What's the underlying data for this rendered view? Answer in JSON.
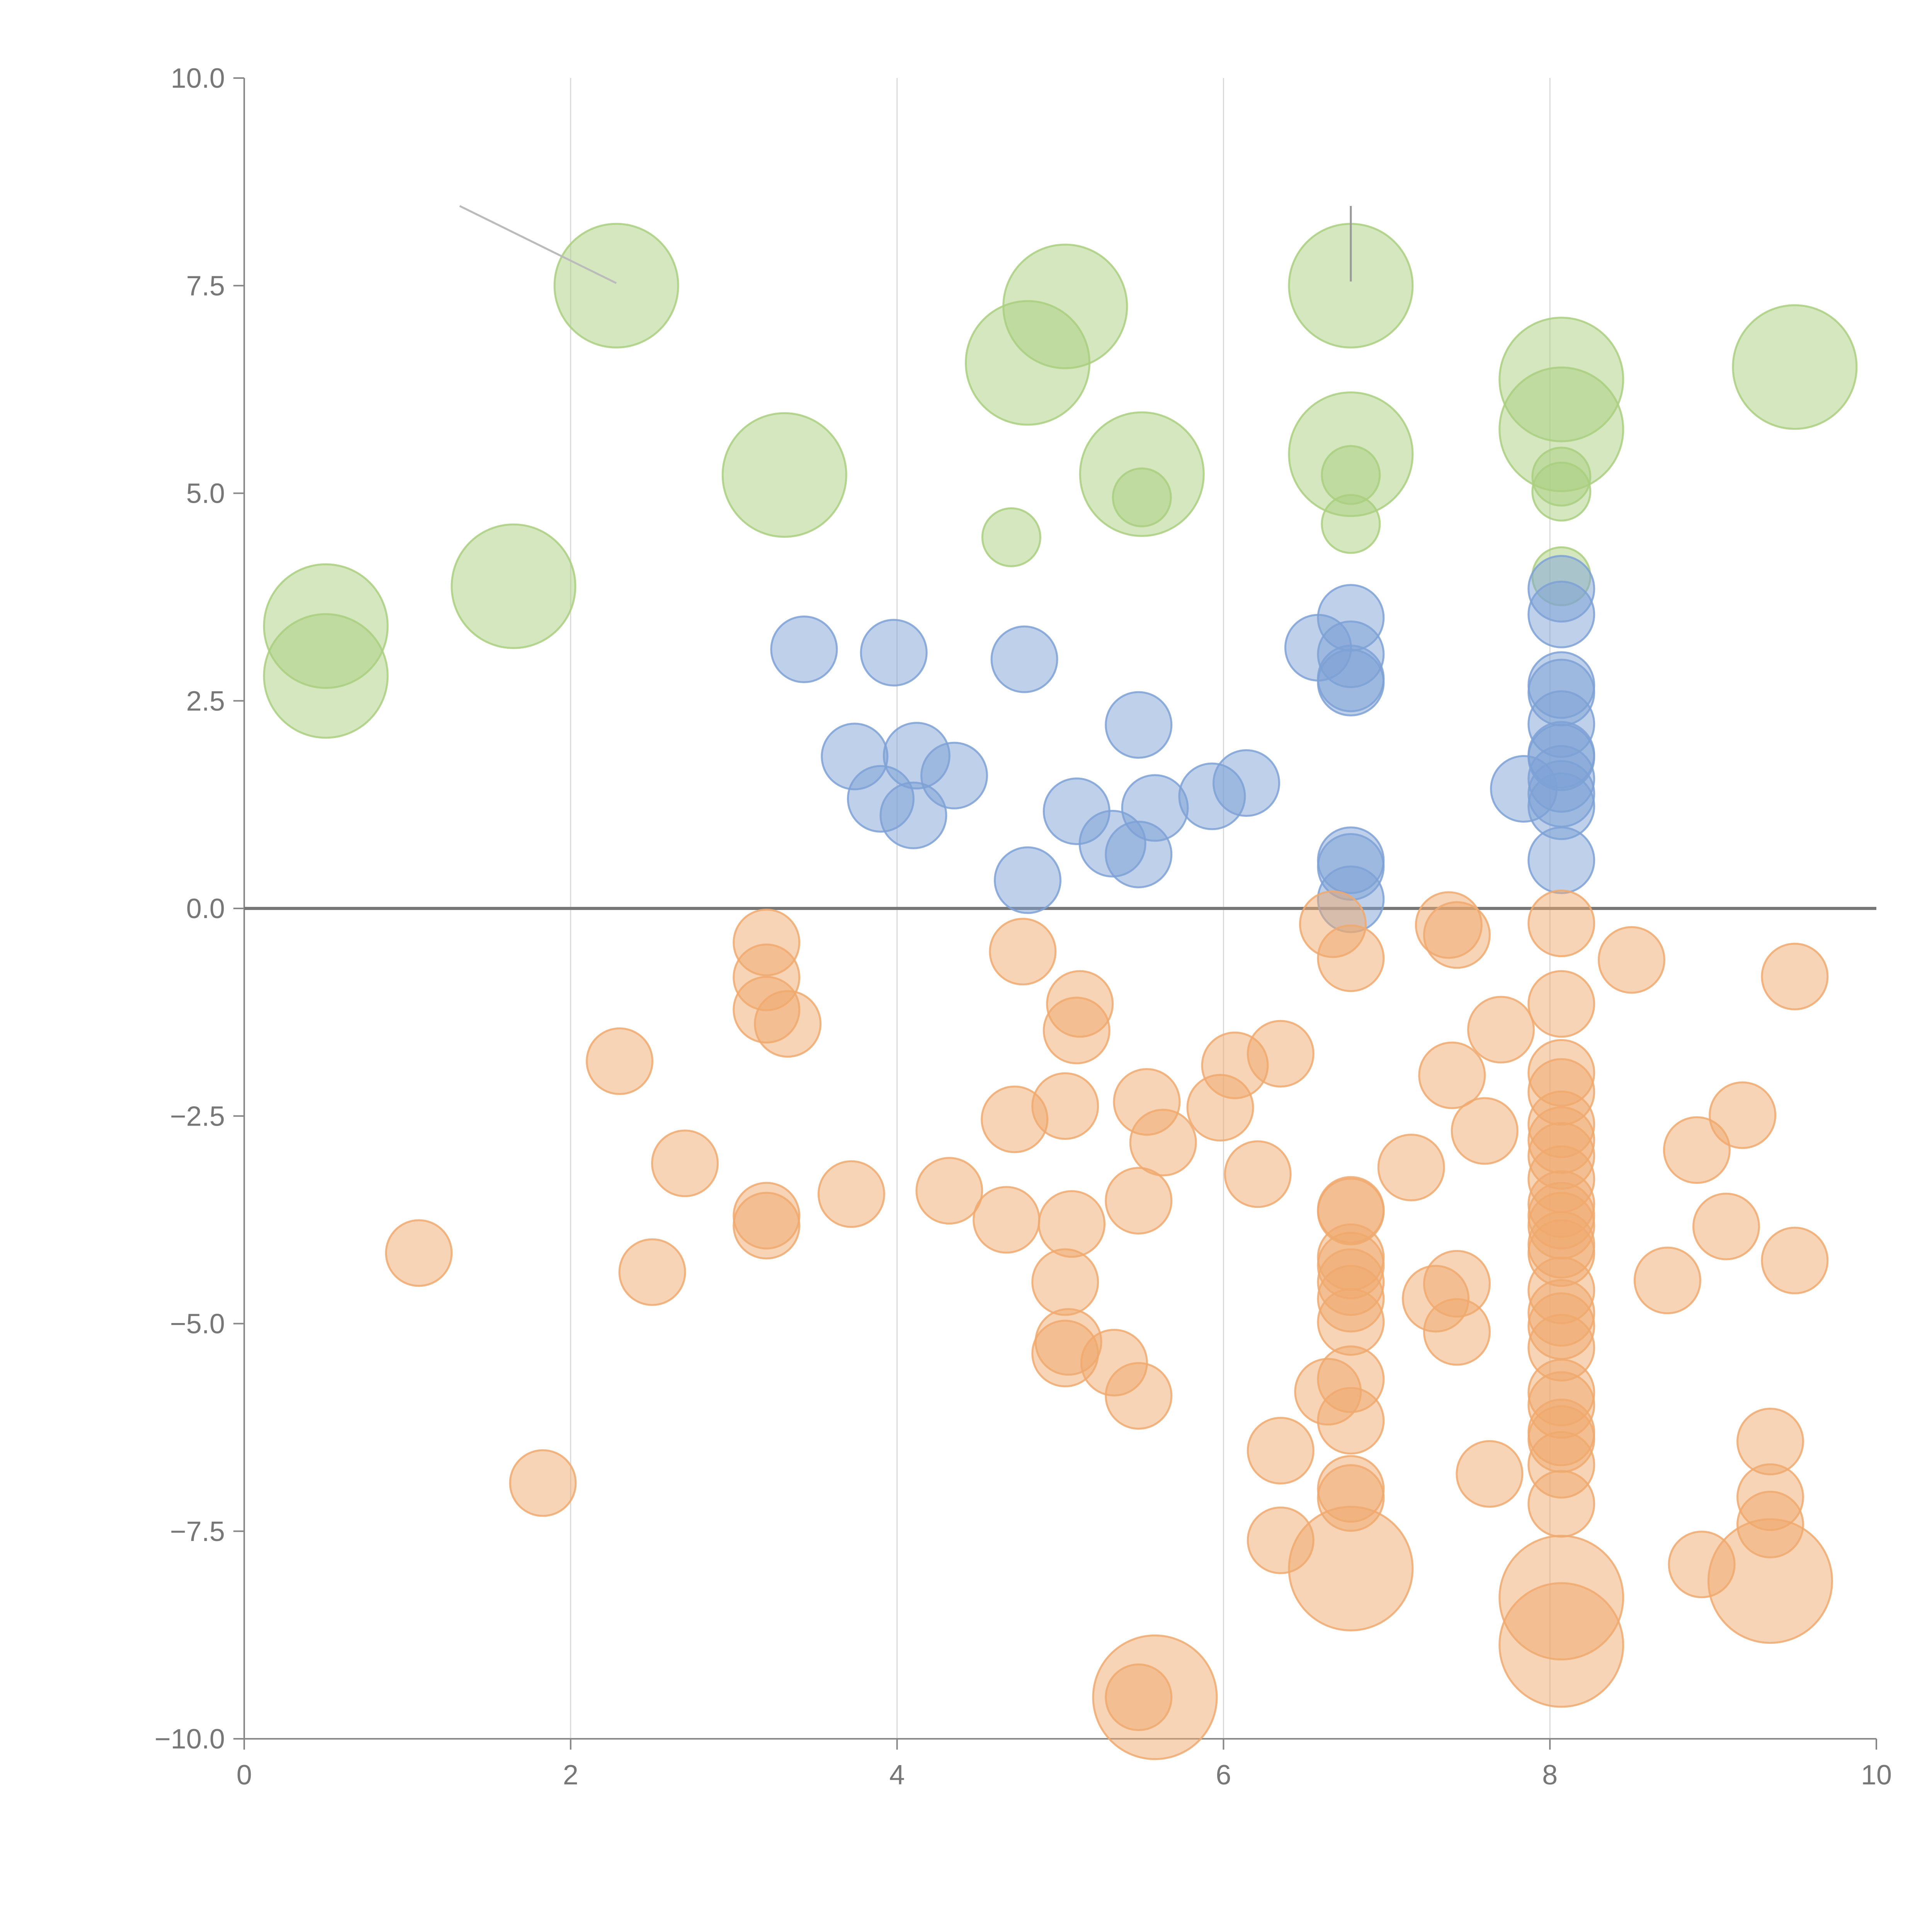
{
  "chart_data": {
    "type": "scatter",
    "title": "",
    "xlabel": "",
    "ylabel": "",
    "xlim": [
      0,
      10
    ],
    "ylim": [
      -10,
      10
    ],
    "x_ticks": [
      0,
      2,
      4,
      6,
      8,
      10
    ],
    "x_tick_labels": [
      "0",
      "2",
      "4",
      "6",
      "8",
      "10"
    ],
    "y_ticks": [
      -10,
      -7.5,
      -5,
      -2.5,
      0,
      2.5,
      5,
      7.5,
      10
    ],
    "y_tick_labels": [
      "−10.0",
      "−7.5",
      "−5.0",
      "−2.5",
      "0.0",
      "2.5",
      "5.0",
      "7.5",
      "10.0"
    ],
    "vertical_grid": [
      2,
      4,
      6,
      8
    ],
    "zero_line": 0,
    "series": [
      {
        "name": "green",
        "color": "#a9cf7f",
        "points": [
          [
            0.5,
            3.4,
            1.6
          ],
          [
            0.5,
            2.8,
            1.6
          ],
          [
            1.65,
            3.88,
            1.6
          ],
          [
            2.28,
            7.5,
            1.6
          ],
          [
            3.31,
            5.22,
            1.6
          ],
          [
            4.8,
            6.57,
            1.6
          ],
          [
            5.03,
            7.25,
            1.6
          ],
          [
            5.5,
            5.23,
            1.6
          ],
          [
            6.78,
            7.5,
            1.6
          ],
          [
            6.78,
            5.47,
            1.6
          ],
          [
            8.07,
            6.37,
            1.6
          ],
          [
            8.07,
            5.77,
            1.6
          ],
          [
            9.5,
            6.52,
            1.6
          ],
          [
            4.7,
            4.47,
            0.75
          ],
          [
            5.5,
            4.95,
            0.75
          ],
          [
            6.78,
            5.22,
            0.75
          ],
          [
            6.78,
            4.63,
            0.75
          ],
          [
            8.07,
            5.2,
            0.75
          ],
          [
            8.07,
            5.02,
            0.75
          ],
          [
            8.07,
            4.0,
            0.75
          ]
        ]
      },
      {
        "name": "blue",
        "color": "#7ea1d6",
        "points": [
          [
            3.43,
            3.12,
            0.85
          ],
          [
            3.98,
            3.08,
            0.85
          ],
          [
            4.78,
            3.0,
            0.85
          ],
          [
            3.74,
            1.83,
            0.85
          ],
          [
            3.9,
            1.32,
            0.85
          ],
          [
            4.12,
            1.84,
            0.85
          ],
          [
            4.1,
            1.12,
            0.85
          ],
          [
            4.35,
            1.6,
            0.85
          ],
          [
            4.8,
            0.34,
            0.85
          ],
          [
            5.1,
            1.17,
            0.85
          ],
          [
            5.32,
            0.78,
            0.85
          ],
          [
            5.48,
            2.21,
            0.85
          ],
          [
            5.48,
            0.65,
            0.85
          ],
          [
            5.58,
            1.21,
            0.85
          ],
          [
            5.93,
            1.35,
            0.85
          ],
          [
            6.14,
            1.51,
            0.85
          ],
          [
            6.58,
            3.14,
            0.85
          ],
          [
            6.78,
            3.5,
            0.85
          ],
          [
            6.78,
            3.06,
            0.85
          ],
          [
            6.78,
            2.77,
            0.85
          ],
          [
            6.78,
            2.72,
            0.85
          ],
          [
            6.78,
            0.58,
            0.85
          ],
          [
            6.78,
            0.5,
            0.85
          ],
          [
            6.78,
            0.11,
            0.85
          ],
          [
            7.84,
            1.44,
            0.85
          ],
          [
            8.07,
            3.85,
            0.85
          ],
          [
            8.07,
            3.54,
            0.85
          ],
          [
            8.07,
            2.69,
            0.85
          ],
          [
            8.07,
            2.6,
            0.85
          ],
          [
            8.07,
            2.22,
            0.85
          ],
          [
            8.07,
            1.85,
            0.85
          ],
          [
            8.07,
            1.82,
            0.85
          ],
          [
            8.07,
            1.56,
            0.85
          ],
          [
            8.07,
            1.38,
            0.85
          ],
          [
            8.07,
            1.23,
            0.85
          ],
          [
            8.07,
            0.58,
            0.85
          ]
        ]
      },
      {
        "name": "orange",
        "color": "#f0a96e",
        "points": [
          [
            1.07,
            -4.15,
            0.85
          ],
          [
            1.83,
            -6.92,
            0.85
          ],
          [
            2.3,
            -1.84,
            0.85
          ],
          [
            2.5,
            -4.38,
            0.85
          ],
          [
            2.7,
            -3.07,
            0.85
          ],
          [
            3.2,
            -0.41,
            0.85
          ],
          [
            3.2,
            -0.83,
            0.85
          ],
          [
            3.2,
            -1.22,
            0.85
          ],
          [
            3.33,
            -1.39,
            0.85
          ],
          [
            3.2,
            -3.7,
            0.85
          ],
          [
            3.2,
            -3.82,
            0.85
          ],
          [
            3.72,
            -3.44,
            0.85
          ],
          [
            4.32,
            -3.4,
            0.85
          ],
          [
            4.67,
            -3.75,
            0.85
          ],
          [
            4.72,
            -2.54,
            0.85
          ],
          [
            4.77,
            -0.52,
            0.85
          ],
          [
            5.03,
            -2.38,
            0.85
          ],
          [
            5.03,
            -4.5,
            0.85
          ],
          [
            5.07,
            -3.8,
            0.85
          ],
          [
            5.12,
            -1.15,
            0.85
          ],
          [
            5.1,
            -1.47,
            0.85
          ],
          [
            5.05,
            -5.22,
            0.85
          ],
          [
            5.03,
            -5.36,
            0.85
          ],
          [
            5.33,
            -5.47,
            0.85
          ],
          [
            5.48,
            -5.87,
            0.85
          ],
          [
            5.48,
            -3.52,
            0.85
          ],
          [
            5.53,
            -2.33,
            0.85
          ],
          [
            5.63,
            -2.82,
            0.85
          ],
          [
            5.48,
            -9.5,
            0.85
          ],
          [
            5.98,
            -2.4,
            0.85
          ],
          [
            6.07,
            -1.89,
            0.85
          ],
          [
            6.21,
            -3.2,
            0.85
          ],
          [
            6.35,
            -1.75,
            0.85
          ],
          [
            6.35,
            -6.53,
            0.85
          ],
          [
            6.35,
            -7.61,
            0.85
          ],
          [
            6.64,
            -5.82,
            0.85
          ],
          [
            6.67,
            -0.19,
            0.85
          ],
          [
            6.78,
            -0.6,
            0.85
          ],
          [
            6.78,
            -3.63,
            0.85
          ],
          [
            6.78,
            -3.65,
            0.85
          ],
          [
            6.78,
            -4.2,
            0.85
          ],
          [
            6.78,
            -4.3,
            0.85
          ],
          [
            6.78,
            -4.5,
            0.85
          ],
          [
            6.78,
            -4.7,
            0.85
          ],
          [
            6.78,
            -4.98,
            0.85
          ],
          [
            6.78,
            -5.67,
            0.85
          ],
          [
            6.78,
            -6.17,
            0.85
          ],
          [
            6.78,
            -6.99,
            0.85
          ],
          [
            6.78,
            -7.1,
            0.85
          ],
          [
            7.15,
            -3.12,
            0.85
          ],
          [
            7.3,
            -4.7,
            0.85
          ],
          [
            7.38,
            -0.2,
            0.85
          ],
          [
            7.43,
            -0.32,
            0.85
          ],
          [
            7.4,
            -2.01,
            0.85
          ],
          [
            7.43,
            -4.52,
            0.85
          ],
          [
            7.43,
            -5.1,
            0.85
          ],
          [
            7.6,
            -2.68,
            0.85
          ],
          [
            7.63,
            -6.81,
            0.85
          ],
          [
            7.7,
            -1.46,
            0.85
          ],
          [
            8.07,
            -0.18,
            0.85
          ],
          [
            8.07,
            -1.15,
            0.85
          ],
          [
            8.07,
            -1.98,
            0.85
          ],
          [
            8.07,
            -2.21,
            0.85
          ],
          [
            8.07,
            -2.6,
            0.85
          ],
          [
            8.07,
            -2.79,
            0.85
          ],
          [
            8.07,
            -2.98,
            0.85
          ],
          [
            8.07,
            -3.26,
            0.85
          ],
          [
            8.07,
            -3.56,
            0.85
          ],
          [
            8.07,
            -3.7,
            0.85
          ],
          [
            8.07,
            -3.82,
            0.85
          ],
          [
            8.07,
            -4.05,
            0.85
          ],
          [
            8.07,
            -4.15,
            0.85
          ],
          [
            8.07,
            -4.6,
            0.85
          ],
          [
            8.07,
            -4.87,
            0.85
          ],
          [
            8.07,
            -5.03,
            0.85
          ],
          [
            8.07,
            -5.29,
            0.85
          ],
          [
            8.07,
            -5.83,
            0.85
          ],
          [
            8.07,
            -5.98,
            0.85
          ],
          [
            8.07,
            -6.31,
            0.85
          ],
          [
            8.07,
            -6.39,
            0.85
          ],
          [
            8.07,
            -6.7,
            0.85
          ],
          [
            8.07,
            -7.17,
            0.85
          ],
          [
            8.5,
            -0.62,
            0.85
          ],
          [
            8.72,
            -4.48,
            0.85
          ],
          [
            8.9,
            -2.91,
            0.85
          ],
          [
            8.93,
            -7.9,
            0.85
          ],
          [
            9.08,
            -3.83,
            0.85
          ],
          [
            9.18,
            -2.49,
            0.85
          ],
          [
            9.35,
            -6.42,
            0.85
          ],
          [
            9.35,
            -7.09,
            0.85
          ],
          [
            9.35,
            -7.42,
            0.85
          ],
          [
            9.5,
            -0.82,
            0.85
          ],
          [
            9.5,
            -4.24,
            0.85
          ],
          [
            6.78,
            -7.95,
            1.6
          ],
          [
            8.07,
            -8.3,
            1.6
          ],
          [
            8.07,
            -8.87,
            1.6
          ],
          [
            9.35,
            -8.1,
            1.6
          ],
          [
            5.58,
            -9.5,
            1.6
          ]
        ]
      }
    ],
    "annotation_lines": [
      {
        "from": [
          1.32,
          8.46
        ],
        "to": [
          2.28,
          7.53
        ],
        "color": "#bbbbbb"
      },
      {
        "from": [
          6.78,
          8.46
        ],
        "to": [
          6.78,
          7.55
        ],
        "color": "#999999"
      }
    ]
  }
}
